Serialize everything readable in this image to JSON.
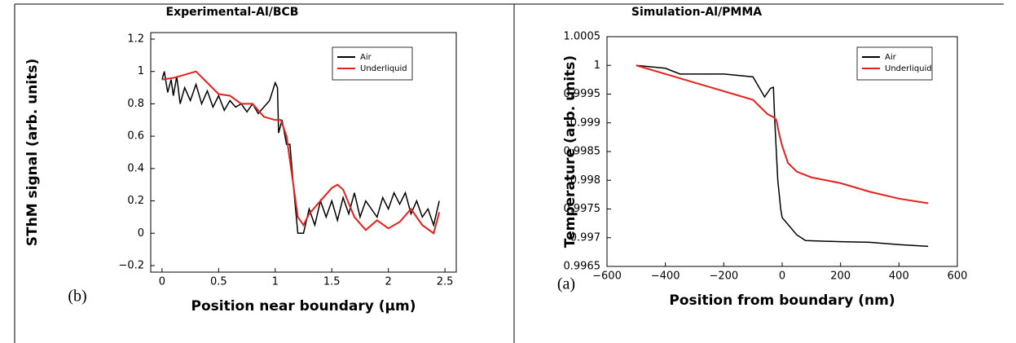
{
  "chart_data": [
    {
      "type": "line",
      "title": "Experimental-Al/BCB",
      "xlabel": "Position near boundary (μm)",
      "ylabel": "SThM signal (arb. units)",
      "annotation": "(b)",
      "xlim": [
        -0.1,
        2.6
      ],
      "ylim": [
        -0.2,
        1.2
      ],
      "xticks": [
        0,
        0.5,
        1,
        1.5,
        2,
        2.5
      ],
      "yticks": [
        {
          "value": -0.2,
          "label": "−0.2"
        },
        0,
        0.2,
        0.4,
        0.6,
        0.8,
        1,
        1.2
      ],
      "legend": "upper right",
      "series": [
        {
          "name": "Air",
          "color": "#000000",
          "x": [
            0,
            0.02,
            0.05,
            0.08,
            0.1,
            0.13,
            0.16,
            0.2,
            0.25,
            0.3,
            0.35,
            0.4,
            0.45,
            0.5,
            0.55,
            0.6,
            0.65,
            0.7,
            0.75,
            0.8,
            0.85,
            0.9,
            0.95,
            1.0,
            1.02,
            1.03,
            1.06,
            1.1,
            1.13,
            1.16,
            1.2,
            1.25,
            1.3,
            1.35,
            1.4,
            1.45,
            1.5,
            1.55,
            1.6,
            1.65,
            1.7,
            1.75,
            1.8,
            1.85,
            1.9,
            1.95,
            2.0,
            2.05,
            2.1,
            2.15,
            2.2,
            2.25,
            2.3,
            2.35,
            2.4,
            2.45
          ],
          "values": [
            0.95,
            1.0,
            0.87,
            0.95,
            0.85,
            0.97,
            0.8,
            0.9,
            0.82,
            0.92,
            0.8,
            0.88,
            0.78,
            0.85,
            0.76,
            0.82,
            0.78,
            0.8,
            0.75,
            0.8,
            0.74,
            0.78,
            0.82,
            0.93,
            0.9,
            0.62,
            0.7,
            0.55,
            0.55,
            0.3,
            0.0,
            0.0,
            0.15,
            0.05,
            0.2,
            0.1,
            0.2,
            0.08,
            0.22,
            0.12,
            0.25,
            0.1,
            0.2,
            0.15,
            0.1,
            0.22,
            0.15,
            0.25,
            0.18,
            0.25,
            0.12,
            0.2,
            0.1,
            0.15,
            0.05,
            0.2
          ]
        },
        {
          "name": "Underliquid",
          "color": "#e8201c",
          "x": [
            0,
            0.1,
            0.2,
            0.3,
            0.4,
            0.5,
            0.6,
            0.7,
            0.8,
            0.9,
            1.0,
            1.05,
            1.1,
            1.15,
            1.2,
            1.25,
            1.3,
            1.4,
            1.5,
            1.55,
            1.6,
            1.7,
            1.8,
            1.9,
            2.0,
            2.1,
            2.2,
            2.3,
            2.4,
            2.45
          ],
          "values": [
            0.95,
            0.96,
            0.98,
            1.0,
            0.93,
            0.86,
            0.85,
            0.8,
            0.8,
            0.72,
            0.7,
            0.7,
            0.6,
            0.35,
            0.1,
            0.05,
            0.12,
            0.2,
            0.28,
            0.3,
            0.27,
            0.1,
            0.02,
            0.08,
            0.03,
            0.07,
            0.15,
            0.05,
            0.0,
            0.13
          ]
        }
      ]
    },
    {
      "type": "line",
      "title": "Simulation-Al/PMMA",
      "xlabel": "Position from boundary (nm)",
      "ylabel": "Temperature (arb. units)",
      "annotation": "(a)",
      "xlim": [
        -600,
        600
      ],
      "ylim": [
        0.9965,
        1.0005
      ],
      "xticks": [
        {
          "value": -600,
          "label": "−600"
        },
        {
          "value": -400,
          "label": "−400"
        },
        {
          "value": -200,
          "label": "−200"
        },
        0,
        200,
        400,
        600
      ],
      "yticks": [
        0.9965,
        0.997,
        0.9975,
        0.998,
        0.9985,
        0.999,
        0.9995,
        1,
        1.0005
      ],
      "legend": "upper right",
      "series": [
        {
          "name": "Air",
          "color": "#000000",
          "x": [
            -500,
            -400,
            -350,
            -200,
            -100,
            -60,
            -40,
            -30,
            -25,
            -15,
            -5,
            0,
            50,
            80,
            200,
            300,
            400,
            500
          ],
          "values": [
            1.0,
            0.99995,
            0.99985,
            0.99985,
            0.9998,
            0.99945,
            0.9996,
            0.99962,
            0.999,
            0.998,
            0.9975,
            0.99735,
            0.99705,
            0.99695,
            0.99693,
            0.99692,
            0.99688,
            0.99685
          ]
        },
        {
          "name": "Underliquid",
          "color": "#e8201c",
          "x": [
            -500,
            -400,
            -300,
            -200,
            -100,
            -80,
            -50,
            -30,
            -20,
            -10,
            0,
            20,
            50,
            100,
            150,
            200,
            300,
            400,
            500
          ],
          "values": [
            1.0,
            0.99985,
            0.9997,
            0.99955,
            0.9994,
            0.9993,
            0.99915,
            0.9991,
            0.99905,
            0.9988,
            0.9986,
            0.9983,
            0.99815,
            0.99805,
            0.998,
            0.99795,
            0.9978,
            0.99768,
            0.9976
          ]
        }
      ]
    }
  ]
}
